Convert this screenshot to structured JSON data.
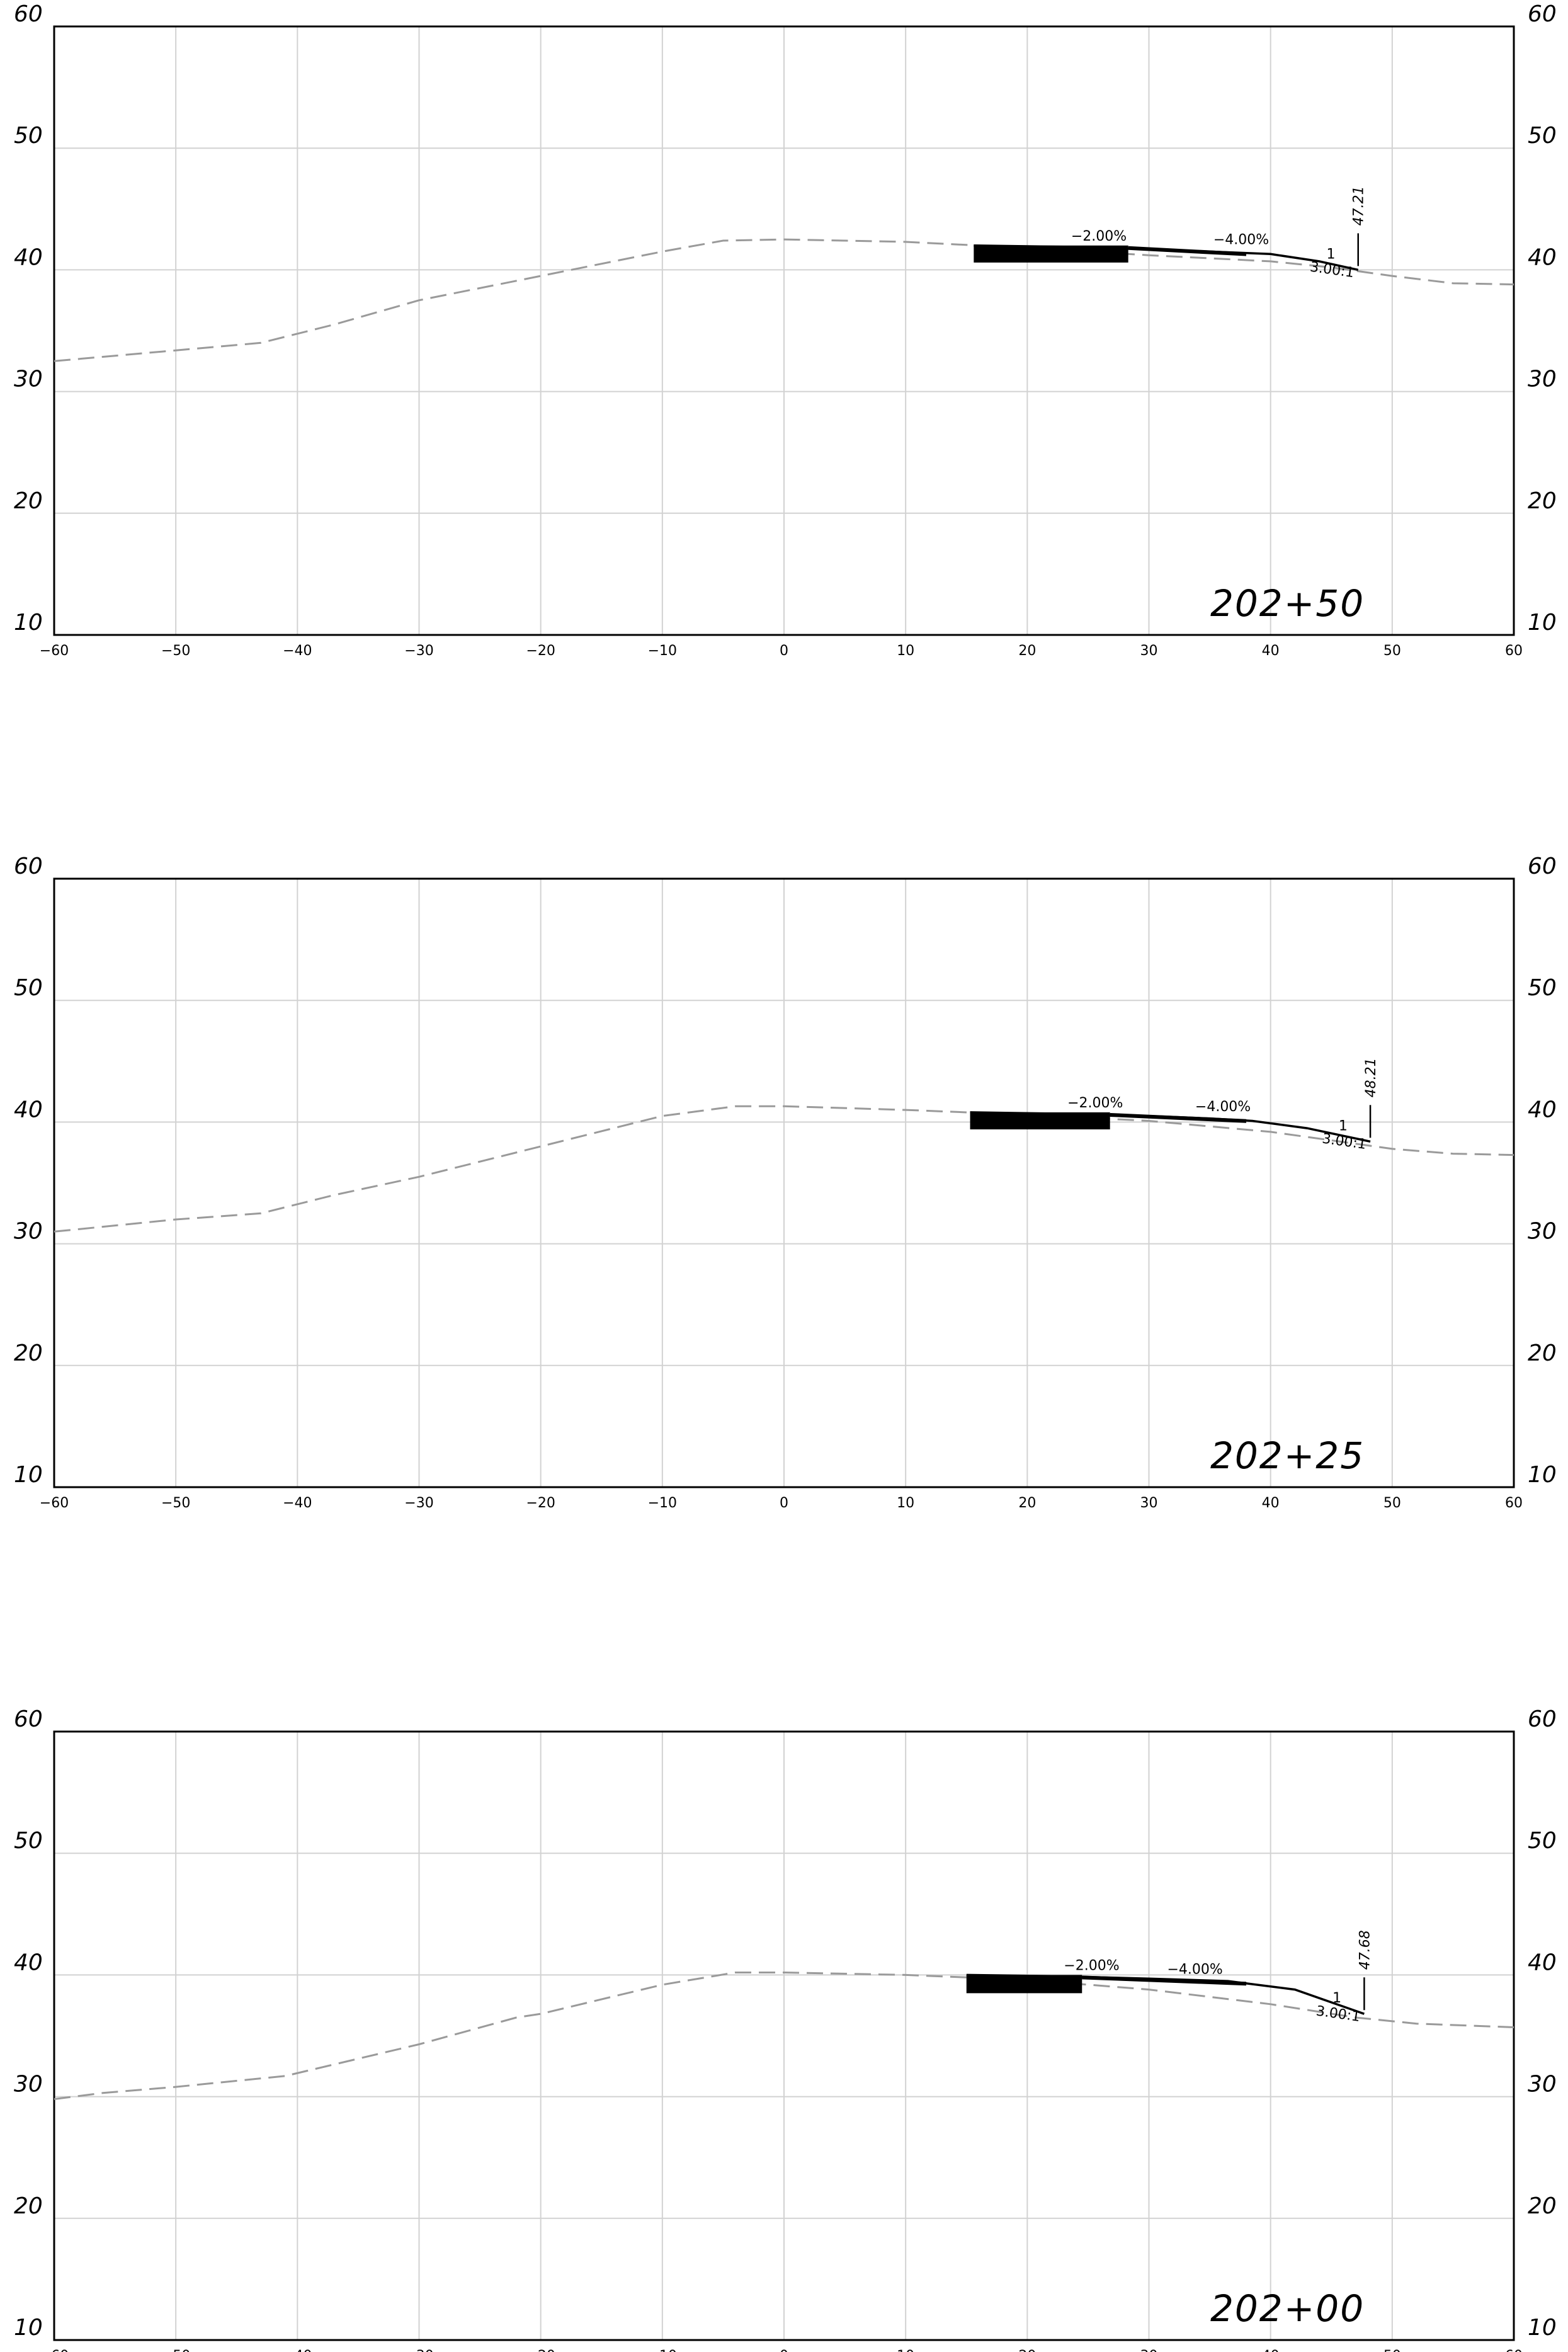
{
  "axes": {
    "x_ticks": [
      -60,
      -50,
      -40,
      -30,
      -20,
      -10,
      0,
      10,
      20,
      30,
      40,
      50,
      60
    ],
    "y_ticks": [
      10,
      20,
      30,
      40,
      50,
      60
    ],
    "xlim": [
      -60,
      60
    ],
    "ylim": [
      10,
      60
    ],
    "grid": true
  },
  "colors": {
    "ground": "#9a9a9a",
    "grid": "#d2d2d2",
    "design": "#000000"
  },
  "chart_data": [
    {
      "type": "line",
      "station": "202+50",
      "series": [
        {
          "style": "dashed-gray",
          "x": [
            -60,
            -43,
            -37,
            -30,
            -25,
            -20,
            -10,
            -5,
            0,
            10,
            20,
            30,
            40,
            45,
            50,
            55,
            60
          ],
          "y": [
            32.5,
            34,
            35.5,
            37.5,
            38.5,
            39.5,
            41.5,
            42.4,
            42.5,
            42.3,
            41.8,
            41.2,
            40.7,
            40.2,
            39.5,
            38.9,
            38.8
          ]
        },
        {
          "style": "solid-black",
          "x": [
            15.6,
            23,
            30,
            35,
            40,
            44,
            47.2
          ],
          "y": [
            42,
            41.9,
            41.7,
            41.5,
            41.3,
            40.7,
            40
          ]
        }
      ],
      "pavement": {
        "x": [
          15.6,
          28.3
        ],
        "y": [
          40.6,
          42
        ]
      },
      "annotations": {
        "slope_left": "−2.00%",
        "slope_right": "−4.00%",
        "side_slope": "3.00:1",
        "side_slope_label_1": "1",
        "offset_value": "47.21"
      }
    },
    {
      "type": "line",
      "station": "202+25",
      "series": [
        {
          "style": "dashed-gray",
          "x": [
            -60,
            -50,
            -43,
            -37,
            -30,
            -20,
            -10,
            -4,
            0,
            10,
            20,
            30,
            40,
            45,
            50,
            55,
            60
          ],
          "y": [
            31,
            32,
            32.5,
            34,
            35.5,
            38,
            40.5,
            41.3,
            41.3,
            41,
            40.6,
            40.1,
            39.2,
            38.5,
            37.8,
            37.4,
            37.3
          ]
        },
        {
          "style": "solid-black",
          "x": [
            15.3,
            22,
            30,
            35,
            38.5,
            43,
            48.2
          ],
          "y": [
            40.8,
            40.7,
            40.5,
            40.3,
            40.1,
            39.5,
            38.4
          ]
        }
      ],
      "pavement": {
        "x": [
          15.3,
          26.8
        ],
        "y": [
          39.4,
          40.8
        ]
      },
      "annotations": {
        "slope_left": "−2.00%",
        "slope_right": "−4.00%",
        "side_slope": "3.00:1",
        "side_slope_label_1": "1",
        "offset_value": "48.21"
      }
    },
    {
      "type": "line",
      "station": "202+00",
      "series": [
        {
          "style": "dashed-gray",
          "x": [
            -60,
            -56,
            -50,
            -41,
            -30,
            -22,
            -20,
            -10,
            -4,
            0,
            10,
            20,
            30,
            40,
            47,
            52,
            60
          ],
          "y": [
            29.8,
            30.3,
            30.8,
            31.7,
            34.3,
            36.5,
            36.8,
            39.2,
            40.2,
            40.2,
            40,
            39.6,
            38.8,
            37.6,
            36.5,
            36,
            35.7
          ]
        },
        {
          "style": "solid-black",
          "x": [
            15,
            22,
            30,
            36.5,
            42,
            47.7
          ],
          "y": [
            40,
            39.9,
            39.7,
            39.5,
            38.8,
            36.8
          ]
        }
      ],
      "pavement": {
        "x": [
          15,
          24.5
        ],
        "y": [
          38.5,
          40
        ]
      },
      "annotations": {
        "slope_left": "−2.00%",
        "slope_right": "−4.00%",
        "side_slope": "3.00:1",
        "side_slope_label_1": "1",
        "offset_value": "47.68"
      }
    }
  ]
}
